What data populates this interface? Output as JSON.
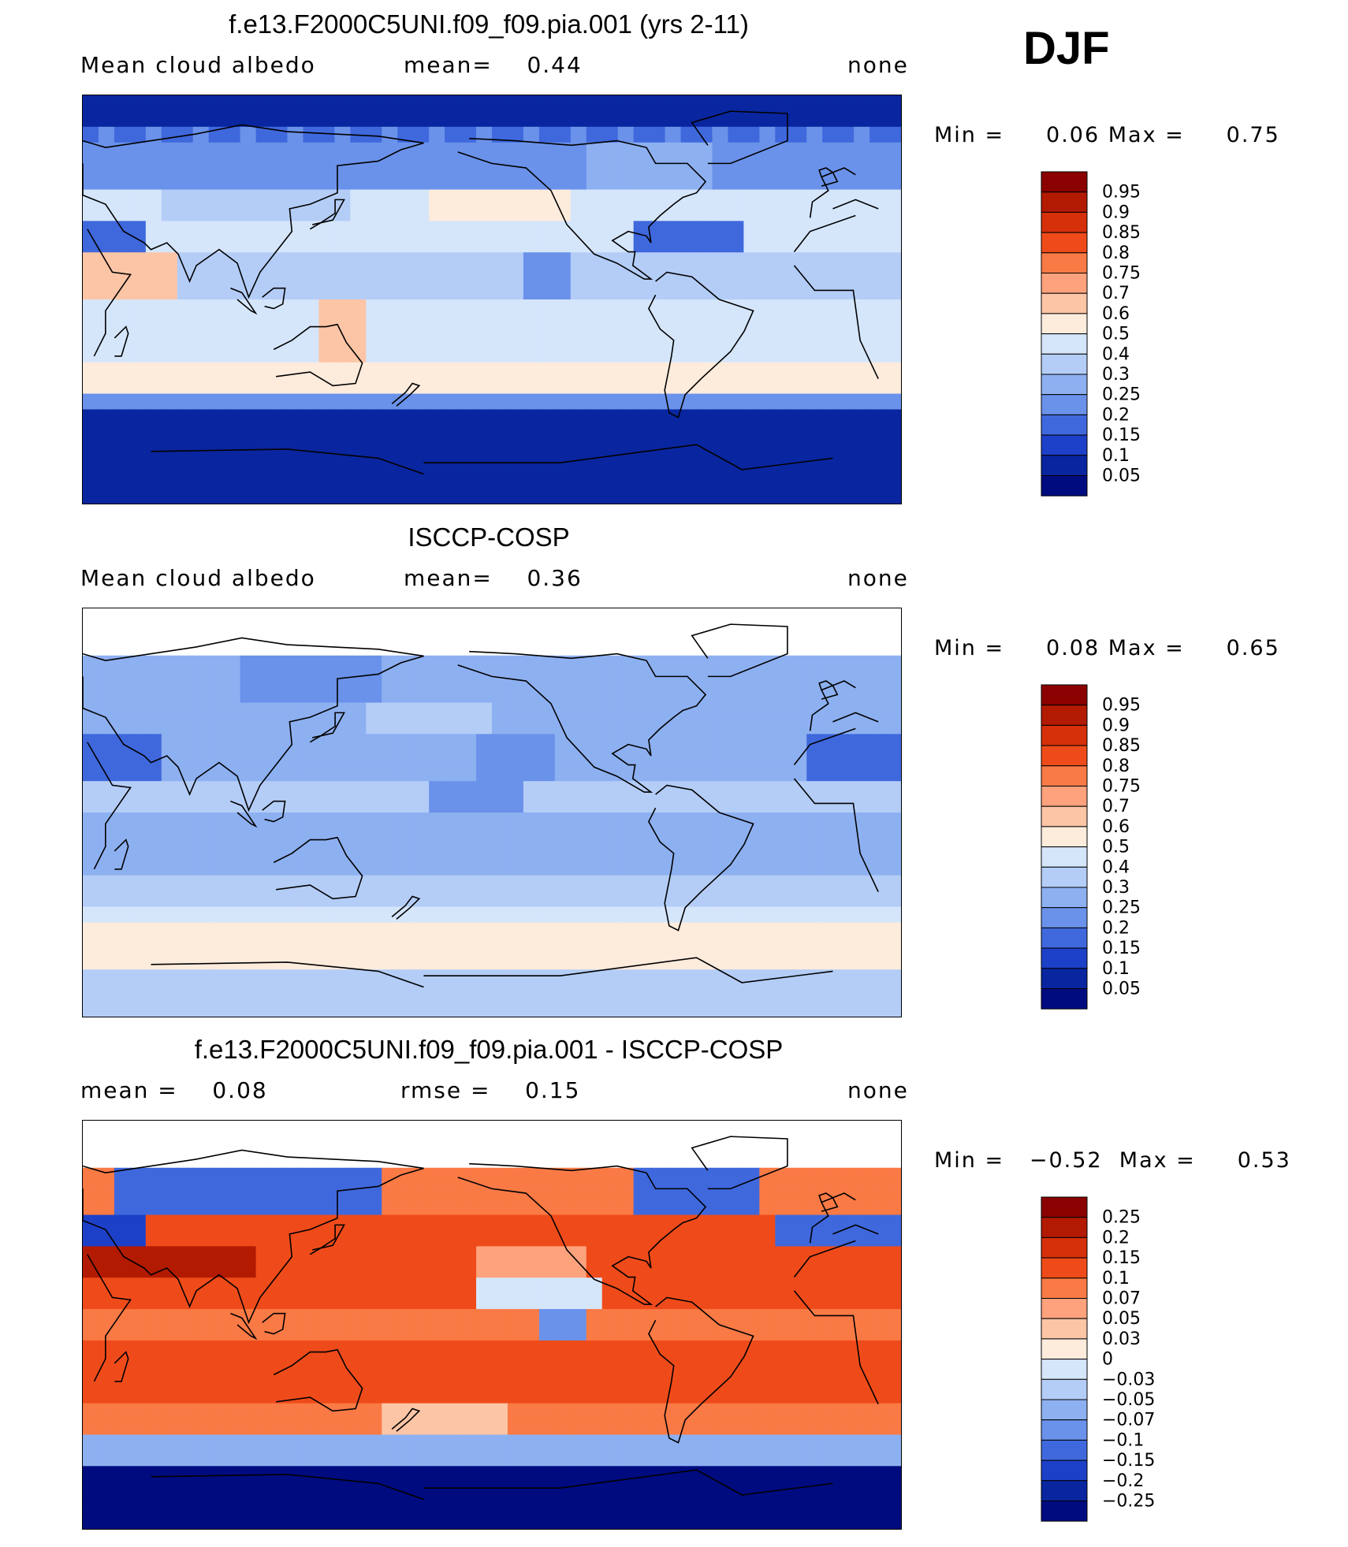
{
  "season": "DJF",
  "chart_data": [
    {
      "type": "heatmap",
      "title": "f.e13.F2000C5UNI.f09_f09.pia.001 (yrs 2-11)",
      "left_label": "Mean cloud albedo",
      "center_label": "mean=    0.44",
      "right_label": "none",
      "min_value": 0.06,
      "max_value": 0.75,
      "stats_text": "Min =     0.06 Max =     0.75",
      "levels": [
        "0.95",
        "0.9",
        "0.85",
        "0.8",
        "0.75",
        "0.7",
        "0.6",
        "0.5",
        "0.4",
        "0.3",
        "0.25",
        "0.2",
        "0.15",
        "0.1",
        "0.05"
      ],
      "colors": [
        "#8b0000",
        "#b21a02",
        "#d6300a",
        "#ef4b1a",
        "#fa7a45",
        "#fda27c",
        "#fcc5a6",
        "#fdebdc",
        "#d5e6fb",
        "#b4cdf7",
        "#8db0f1",
        "#6a92ea",
        "#3f68dd",
        "#1d40c8",
        "#0926a0",
        "#000b80"
      ],
      "mean": 0.44
    },
    {
      "type": "heatmap",
      "title": "ISCCP-COSP",
      "left_label": "Mean cloud albedo",
      "center_label": "mean=    0.36",
      "right_label": "none",
      "min_value": 0.08,
      "max_value": 0.65,
      "stats_text": "Min =     0.08 Max =     0.65",
      "levels": [
        "0.95",
        "0.9",
        "0.85",
        "0.8",
        "0.75",
        "0.7",
        "0.6",
        "0.5",
        "0.4",
        "0.3",
        "0.25",
        "0.2",
        "0.15",
        "0.1",
        "0.05"
      ],
      "colors": [
        "#8b0000",
        "#b21a02",
        "#d6300a",
        "#ef4b1a",
        "#fa7a45",
        "#fda27c",
        "#fcc5a6",
        "#fdebdc",
        "#d5e6fb",
        "#b4cdf7",
        "#8db0f1",
        "#6a92ea",
        "#3f68dd",
        "#1d40c8",
        "#0926a0",
        "#000b80"
      ],
      "mean": 0.36
    },
    {
      "type": "heatmap",
      "title": "f.e13.F2000C5UNI.f09_f09.pia.001 - ISCCP-COSP",
      "left_label": "mean =    0.08",
      "center_label": "rmse =    0.15",
      "right_label": "none",
      "min_value": -0.52,
      "max_value": 0.53,
      "stats_text": "Min =   −0.52  Max =     0.53",
      "levels": [
        "0.25",
        "0.2",
        "0.15",
        "0.1",
        "0.07",
        "0.05",
        "0.03",
        "0",
        "−0.03",
        "−0.05",
        "−0.07",
        "−0.1",
        "−0.15",
        "−0.2",
        "−0.25"
      ],
      "colors": [
        "#8b0000",
        "#b21a02",
        "#d6300a",
        "#ef4b1a",
        "#fa7a45",
        "#fda27c",
        "#fcc5a6",
        "#fdebdc",
        "#d5e6fb",
        "#b4cdf7",
        "#8db0f1",
        "#6a92ea",
        "#3f68dd",
        "#1d40c8",
        "#0926a0",
        "#000b80"
      ],
      "mean": 0.08,
      "rmse": 0.15
    }
  ]
}
